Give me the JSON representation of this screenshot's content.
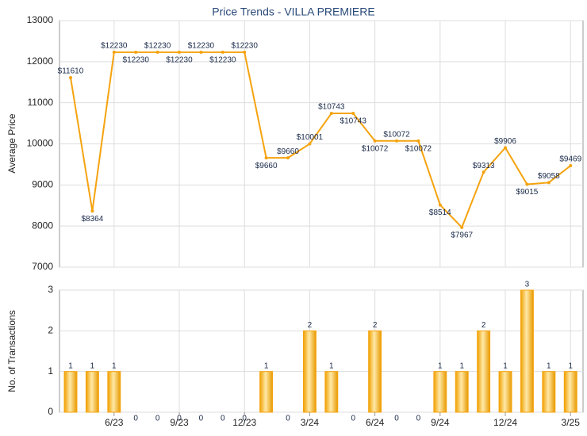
{
  "chart_data": [
    {
      "type": "line",
      "title": "Price Trends - VILLA PREMIERE",
      "y_label": "Average Price",
      "color": "#f5a30f",
      "values": [
        11610,
        8364,
        12230,
        12230,
        12230,
        12230,
        12230,
        12230,
        12230,
        9660,
        9660,
        10001,
        10743,
        10743,
        10072,
        10072,
        10072,
        8514,
        7967,
        9313,
        9906,
        9015,
        9058,
        9469
      ],
      "value_labels": [
        "$11610",
        "$8364",
        "$12230",
        "$12230",
        "$12230",
        "$12230",
        "$12230",
        "$12230",
        "$12230",
        "$9660",
        "$9660",
        "$10001",
        "$10743",
        "$10743",
        "$10072",
        "$10072",
        "$10072",
        "$8514",
        "$7967",
        "$9313",
        "$9906",
        "$9015",
        "$9058",
        "$9469"
      ],
      "ylim": [
        7000,
        13000
      ],
      "yticks": [
        7000,
        8000,
        9000,
        10000,
        11000,
        12000,
        13000
      ],
      "grid": true
    },
    {
      "type": "bar",
      "y_label": "No. of Transactions",
      "color": "#f5a30f",
      "categories": [
        null,
        null,
        "6/23",
        null,
        null,
        "9/23",
        null,
        null,
        "12/23",
        null,
        null,
        "3/24",
        null,
        null,
        "6/24",
        null,
        null,
        "9/24",
        null,
        null,
        "12/24",
        null,
        null,
        "3/25"
      ],
      "values": [
        1,
        1,
        1,
        0,
        0,
        0,
        0,
        0,
        0,
        1,
        0,
        2,
        1,
        0,
        2,
        0,
        0,
        1,
        1,
        2,
        1,
        3,
        1,
        1
      ],
      "ylim": [
        0,
        3
      ],
      "yticks": [
        0,
        1,
        2,
        3
      ],
      "grid": true
    }
  ]
}
